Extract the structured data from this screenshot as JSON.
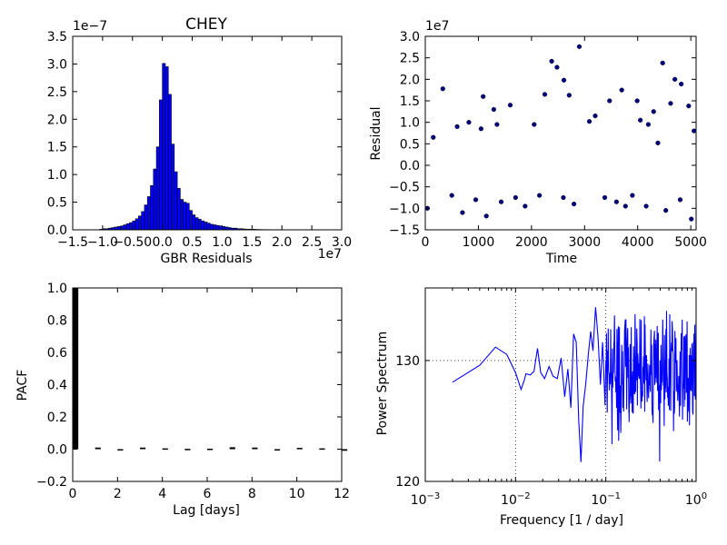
{
  "chart_data": [
    {
      "type": "histogram",
      "title": "CHEY",
      "xlabel": "GBR Residuals",
      "ylabel": "",
      "x_offset_label": "1e7",
      "y_offset_label": "1e−7",
      "xlim": [
        -1.5,
        3.0
      ],
      "ylim": [
        0.0,
        3.5
      ],
      "x_ticks": [
        -1.5,
        -1.0,
        -0.5,
        0.0,
        0.5,
        1.0,
        1.5,
        2.0,
        2.5,
        3.0
      ],
      "x_tick_labels": [
        "−1.5",
        "−1.0",
        "−0.50",
        "0.0",
        "0.5",
        "1.0",
        "1.5",
        "2.0",
        "2.5",
        "3.0"
      ],
      "y_ticks": [
        0.0,
        0.5,
        1.0,
        1.5,
        2.0,
        2.5,
        3.0,
        3.5
      ],
      "y_tick_labels": [
        "0.0",
        "0.5",
        "1.0",
        "1.5",
        "2.0",
        "2.5",
        "3.0",
        "3.5"
      ],
      "bar_color": "#0000ff",
      "bin_width": 0.05,
      "bins": [
        [
          -1.05,
          0.01
        ],
        [
          -1.0,
          0.02
        ],
        [
          -0.95,
          0.02
        ],
        [
          -0.9,
          0.03
        ],
        [
          -0.85,
          0.04
        ],
        [
          -0.8,
          0.05
        ],
        [
          -0.75,
          0.06
        ],
        [
          -0.7,
          0.07
        ],
        [
          -0.65,
          0.09
        ],
        [
          -0.6,
          0.11
        ],
        [
          -0.55,
          0.13
        ],
        [
          -0.5,
          0.16
        ],
        [
          -0.45,
          0.2
        ],
        [
          -0.4,
          0.25
        ],
        [
          -0.35,
          0.33
        ],
        [
          -0.3,
          0.45
        ],
        [
          -0.25,
          0.6
        ],
        [
          -0.2,
          0.8
        ],
        [
          -0.15,
          1.1
        ],
        [
          -0.1,
          1.5
        ],
        [
          -0.05,
          2.35
        ],
        [
          0.0,
          3.01
        ],
        [
          0.05,
          2.95
        ],
        [
          0.1,
          2.45
        ],
        [
          0.15,
          1.55
        ],
        [
          0.2,
          1.05
        ],
        [
          0.25,
          0.75
        ],
        [
          0.3,
          0.55
        ],
        [
          0.35,
          0.5
        ],
        [
          0.4,
          0.48
        ],
        [
          0.45,
          0.35
        ],
        [
          0.5,
          0.27
        ],
        [
          0.55,
          0.22
        ],
        [
          0.6,
          0.19
        ],
        [
          0.65,
          0.16
        ],
        [
          0.7,
          0.14
        ],
        [
          0.75,
          0.12
        ],
        [
          0.8,
          0.1
        ],
        [
          0.85,
          0.09
        ],
        [
          0.9,
          0.08
        ],
        [
          0.95,
          0.07
        ],
        [
          1.0,
          0.06
        ],
        [
          1.05,
          0.05
        ],
        [
          1.1,
          0.04
        ],
        [
          1.15,
          0.03
        ],
        [
          1.2,
          0.03
        ],
        [
          1.25,
          0.02
        ],
        [
          1.3,
          0.02
        ],
        [
          1.35,
          0.015
        ],
        [
          1.4,
          0.01
        ],
        [
          1.45,
          0.01
        ],
        [
          1.5,
          0.01
        ],
        [
          1.55,
          0.008
        ],
        [
          1.6,
          0.006
        ],
        [
          1.65,
          0.005
        ],
        [
          1.7,
          0.004
        ],
        [
          1.75,
          0.004
        ],
        [
          1.8,
          0.003
        ],
        [
          1.85,
          0.003
        ],
        [
          1.9,
          0.002
        ],
        [
          1.95,
          0.002
        ],
        [
          2.0,
          0.002
        ],
        [
          2.05,
          0.001
        ],
        [
          2.1,
          0.001
        ],
        [
          2.15,
          0.001
        ],
        [
          2.2,
          0.001
        ],
        [
          2.25,
          0.001
        ],
        [
          2.3,
          0.001
        ],
        [
          2.35,
          0.001
        ],
        [
          2.4,
          0.001
        ],
        [
          2.45,
          0.001
        ],
        [
          2.5,
          0.001
        ],
        [
          2.55,
          0.001
        ],
        [
          2.6,
          0.001
        ],
        [
          2.65,
          0.001
        ],
        [
          2.7,
          0.001
        ]
      ]
    },
    {
      "type": "scatter",
      "title": "",
      "xlabel": "Time",
      "ylabel": "Residual",
      "y_offset_label": "1e7",
      "xlim": [
        0,
        5100
      ],
      "ylim": [
        -1.5,
        3.0
      ],
      "x_ticks": [
        0,
        1000,
        2000,
        3000,
        4000,
        5000
      ],
      "x_tick_labels": [
        "0",
        "1000",
        "2000",
        "3000",
        "4000",
        "5000"
      ],
      "y_ticks": [
        -1.5,
        -1.0,
        -0.5,
        0.0,
        0.5,
        1.0,
        1.5,
        2.0,
        2.5,
        3.0
      ],
      "y_tick_labels": [
        "−1.5",
        "−1.0",
        "−0.5",
        "0.0",
        "0.5",
        "1.0",
        "1.5",
        "2.0",
        "2.5",
        "3.0"
      ],
      "marker_color": "#000080",
      "points": [
        [
          40,
          -1.0
        ],
        [
          150,
          0.65
        ],
        [
          330,
          1.78
        ],
        [
          700,
          -1.1
        ],
        [
          820,
          1.0
        ],
        [
          1090,
          1.6
        ],
        [
          1150,
          -1.18
        ],
        [
          1290,
          1.3
        ],
        [
          1430,
          -0.85
        ],
        [
          1600,
          1.4
        ],
        [
          1880,
          -0.95
        ],
        [
          2250,
          1.65
        ],
        [
          2380,
          2.42
        ],
        [
          2480,
          2.28
        ],
        [
          2610,
          1.98
        ],
        [
          2710,
          1.63
        ],
        [
          2900,
          2.76
        ],
        [
          2800,
          -0.9
        ],
        [
          3090,
          1.02
        ],
        [
          3380,
          -0.75
        ],
        [
          3470,
          1.5
        ],
        [
          3700,
          1.75
        ],
        [
          3770,
          -0.95
        ],
        [
          3990,
          1.5
        ],
        [
          4160,
          -0.95
        ],
        [
          4300,
          1.25
        ],
        [
          4380,
          0.52
        ],
        [
          4470,
          2.38
        ],
        [
          4530,
          -1.05
        ],
        [
          4620,
          1.44
        ],
        [
          4700,
          2.0
        ],
        [
          4820,
          1.89
        ],
        [
          4960,
          1.38
        ],
        [
          5010,
          -1.25
        ],
        [
          5060,
          0.8
        ],
        [
          500,
          -0.7
        ],
        [
          600,
          0.9
        ],
        [
          950,
          -0.8
        ],
        [
          1350,
          0.95
        ],
        [
          1700,
          -0.75
        ],
        [
          2050,
          0.95
        ],
        [
          2150,
          -0.7
        ],
        [
          3200,
          1.15
        ],
        [
          3600,
          -0.85
        ],
        [
          4050,
          1.05
        ],
        [
          4200,
          0.95
        ],
        [
          4800,
          -0.8
        ],
        [
          2600,
          -0.75
        ],
        [
          1050,
          0.85
        ],
        [
          3900,
          -0.7
        ]
      ]
    },
    {
      "type": "bar",
      "title": "",
      "xlabel": "Lag [days]",
      "ylabel": "PACF",
      "xlim": [
        0,
        12
      ],
      "ylim": [
        -0.2,
        1.0
      ],
      "x_ticks": [
        0,
        2,
        4,
        6,
        8,
        10,
        12
      ],
      "x_tick_labels": [
        "0",
        "2",
        "4",
        "6",
        "8",
        "10",
        "12"
      ],
      "y_ticks": [
        -0.2,
        0.0,
        0.2,
        0.4,
        0.6,
        0.8,
        1.0
      ],
      "y_tick_labels": [
        "−0.2",
        "0.0",
        "0.2",
        "0.4",
        "0.6",
        "0.8",
        "1.0"
      ],
      "bar_color": "#000000",
      "lags": [
        0,
        1,
        2,
        3,
        4,
        5,
        6,
        7,
        8,
        9,
        10,
        11,
        12
      ],
      "values": [
        1.0,
        0.01,
        -0.005,
        0.01,
        0.005,
        0.002,
        0.003,
        0.012,
        0.01,
        -0.008,
        0.008,
        0.005,
        -0.01
      ]
    },
    {
      "type": "line",
      "title": "",
      "xlabel": "Frequency [1 / day]",
      "ylabel": "Power Spectrum",
      "x_scale": "log",
      "xlim": [
        0.001,
        1.0
      ],
      "ylim": [
        120,
        136
      ],
      "x_ticks": [
        0.001,
        0.01,
        0.1,
        1.0
      ],
      "x_tick_labels": [
        {
          "base": "10",
          "exp": "−3"
        },
        {
          "base": "10",
          "exp": "−2"
        },
        {
          "base": "10",
          "exp": "−1"
        },
        {
          "base": "10",
          "exp": "0"
        }
      ],
      "y_ticks": [
        120,
        130
      ],
      "y_tick_labels": [
        "120",
        "130"
      ],
      "grid": "dotted reference lines at x=0.01, x=0.1 and y=130",
      "grid_x": [
        0.01,
        0.1
      ],
      "grid_y": [
        130
      ],
      "line_color": "#0000ff",
      "x": [
        0.002,
        0.004,
        0.006,
        0.008,
        0.01,
        0.0115,
        0.0125,
        0.013,
        0.0145,
        0.016,
        0.0175,
        0.019,
        0.021,
        0.0235,
        0.026,
        0.029,
        0.032,
        0.035,
        0.038,
        0.041,
        0.044,
        0.047,
        0.05,
        0.053,
        0.056,
        0.06,
        0.064,
        0.068,
        0.072,
        0.077,
        0.082,
        0.087,
        0.092,
        0.098
      ],
      "y": [
        128.2,
        129.6,
        131.1,
        130.5,
        129.0,
        127.6,
        128.4,
        128.9,
        128.8,
        129.1,
        131.0,
        129.0,
        128.5,
        129.5,
        128.7,
        128.5,
        130.2,
        127.0,
        129.3,
        126.1,
        132.2,
        131.5,
        125.1,
        121.6,
        126.2,
        128.1,
        130.5,
        132.4,
        130.8,
        134.4,
        131.9,
        128.0,
        131.5,
        126.3
      ]
    }
  ]
}
